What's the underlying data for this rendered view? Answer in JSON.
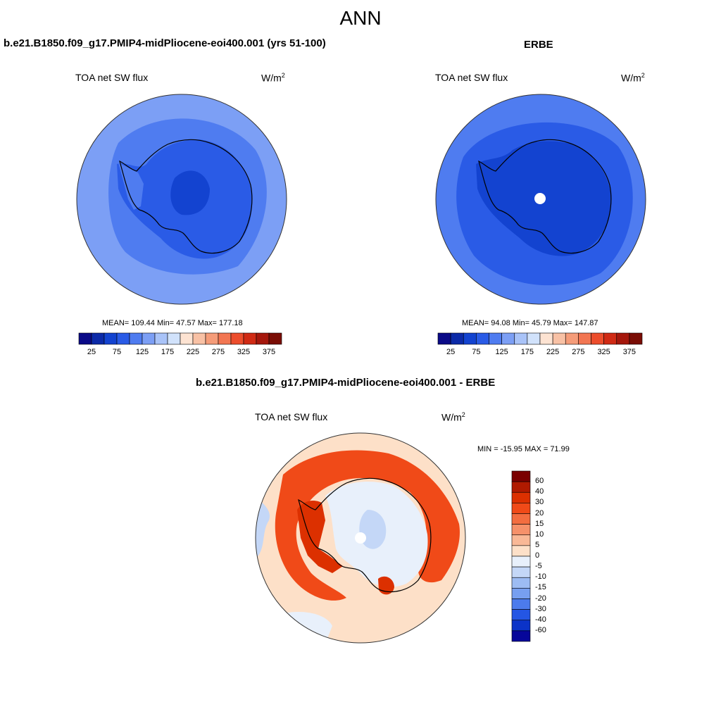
{
  "main_title": "ANN",
  "panels": [
    {
      "title": "b.e21.B1850.f09_g17.PMIP4-midPliocene-eoi400.001 (yrs 51-100)",
      "variable": "TOA net SW flux",
      "units_base": "W/m",
      "units_exp": "2",
      "stats": "MEAN= 109.44  Min=  47.57  Max= 177.18",
      "colorbar_ticks": [
        "25",
        "75",
        "125",
        "175",
        "225",
        "275",
        "325",
        "375"
      ]
    },
    {
      "title": "ERBE",
      "variable": "TOA net SW flux",
      "units_base": "W/m",
      "units_exp": "2",
      "stats": "MEAN=  94.08  Min=  45.79  Max= 147.87",
      "colorbar_ticks": [
        "25",
        "75",
        "125",
        "175",
        "225",
        "275",
        "325",
        "375"
      ]
    },
    {
      "title": "b.e21.B1850.f09_g17.PMIP4-midPliocene-eoi400.001 - ERBE",
      "variable": "TOA net SW flux",
      "units_base": "W/m",
      "units_exp": "2",
      "minmax": "MIN = -15.95 MAX =  71.99",
      "colorbar_ticks": [
        "60",
        "40",
        "30",
        "20",
        "15",
        "10",
        "5",
        "0",
        "-5",
        "-10",
        "-15",
        "-20",
        "-30",
        "-40",
        "-60"
      ]
    }
  ],
  "colors": {
    "abs_scale": [
      "#0a0a87",
      "#0c2aa8",
      "#1343d0",
      "#2a5be6",
      "#4f7cf0",
      "#7c9ff5",
      "#a9c3f8",
      "#d1e2fb",
      "#fde3d2",
      "#f8c1a5",
      "#f59c79",
      "#f27652",
      "#ec4d2c",
      "#d02a14",
      "#a5170c",
      "#7a0d05"
    ],
    "diff_scale": [
      "#7a0000",
      "#b01a00",
      "#dc3000",
      "#f04a18",
      "#f36d40",
      "#f6916a",
      "#f9b896",
      "#fde0c8",
      "#e8f0fb",
      "#c4d7f7",
      "#9dbcf3",
      "#779ff0",
      "#4c7bec",
      "#2456e4",
      "#0b33c8",
      "#06069a"
    ],
    "coast": "#000000"
  }
}
